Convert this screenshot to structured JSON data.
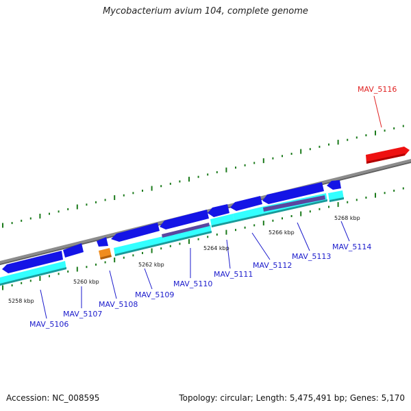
{
  "title": "Mycobacterium avium 104, complete genome",
  "footer": {
    "accession": "Accession: NC_008595",
    "summary": "Topology: circular; Length: 5,475,491 bp; Genes: 5,170"
  },
  "colors": {
    "backbone": "#8c8c8c",
    "cds_forward": "#1414e6",
    "cds_reverse": "#1414e6",
    "feature_cyan": "#33ffff",
    "feature_purple": "#5a46a0",
    "orange": "#f08c1e",
    "highlight": "#ee1111",
    "tick": "#1a7a1a",
    "label_blue": "#1a1acc",
    "label_red": "#e02020"
  },
  "scale_labels": [
    "5258 kbp",
    "5260 kbp",
    "5262 kbp",
    "5264 kbp",
    "5266 kbp",
    "5268 kbp"
  ],
  "gene_labels": [
    {
      "text": "MAV_5106",
      "highlight": false
    },
    {
      "text": "MAV_5107",
      "highlight": false
    },
    {
      "text": "MAV_5108",
      "highlight": false
    },
    {
      "text": "MAV_5109",
      "highlight": false
    },
    {
      "text": "MAV_5110",
      "highlight": false
    },
    {
      "text": "MAV_5111",
      "highlight": false
    },
    {
      "text": "MAV_5112",
      "highlight": false
    },
    {
      "text": "MAV_5113",
      "highlight": false
    },
    {
      "text": "MAV_5114",
      "highlight": false
    },
    {
      "text": "MAV_5116",
      "highlight": true
    }
  ]
}
